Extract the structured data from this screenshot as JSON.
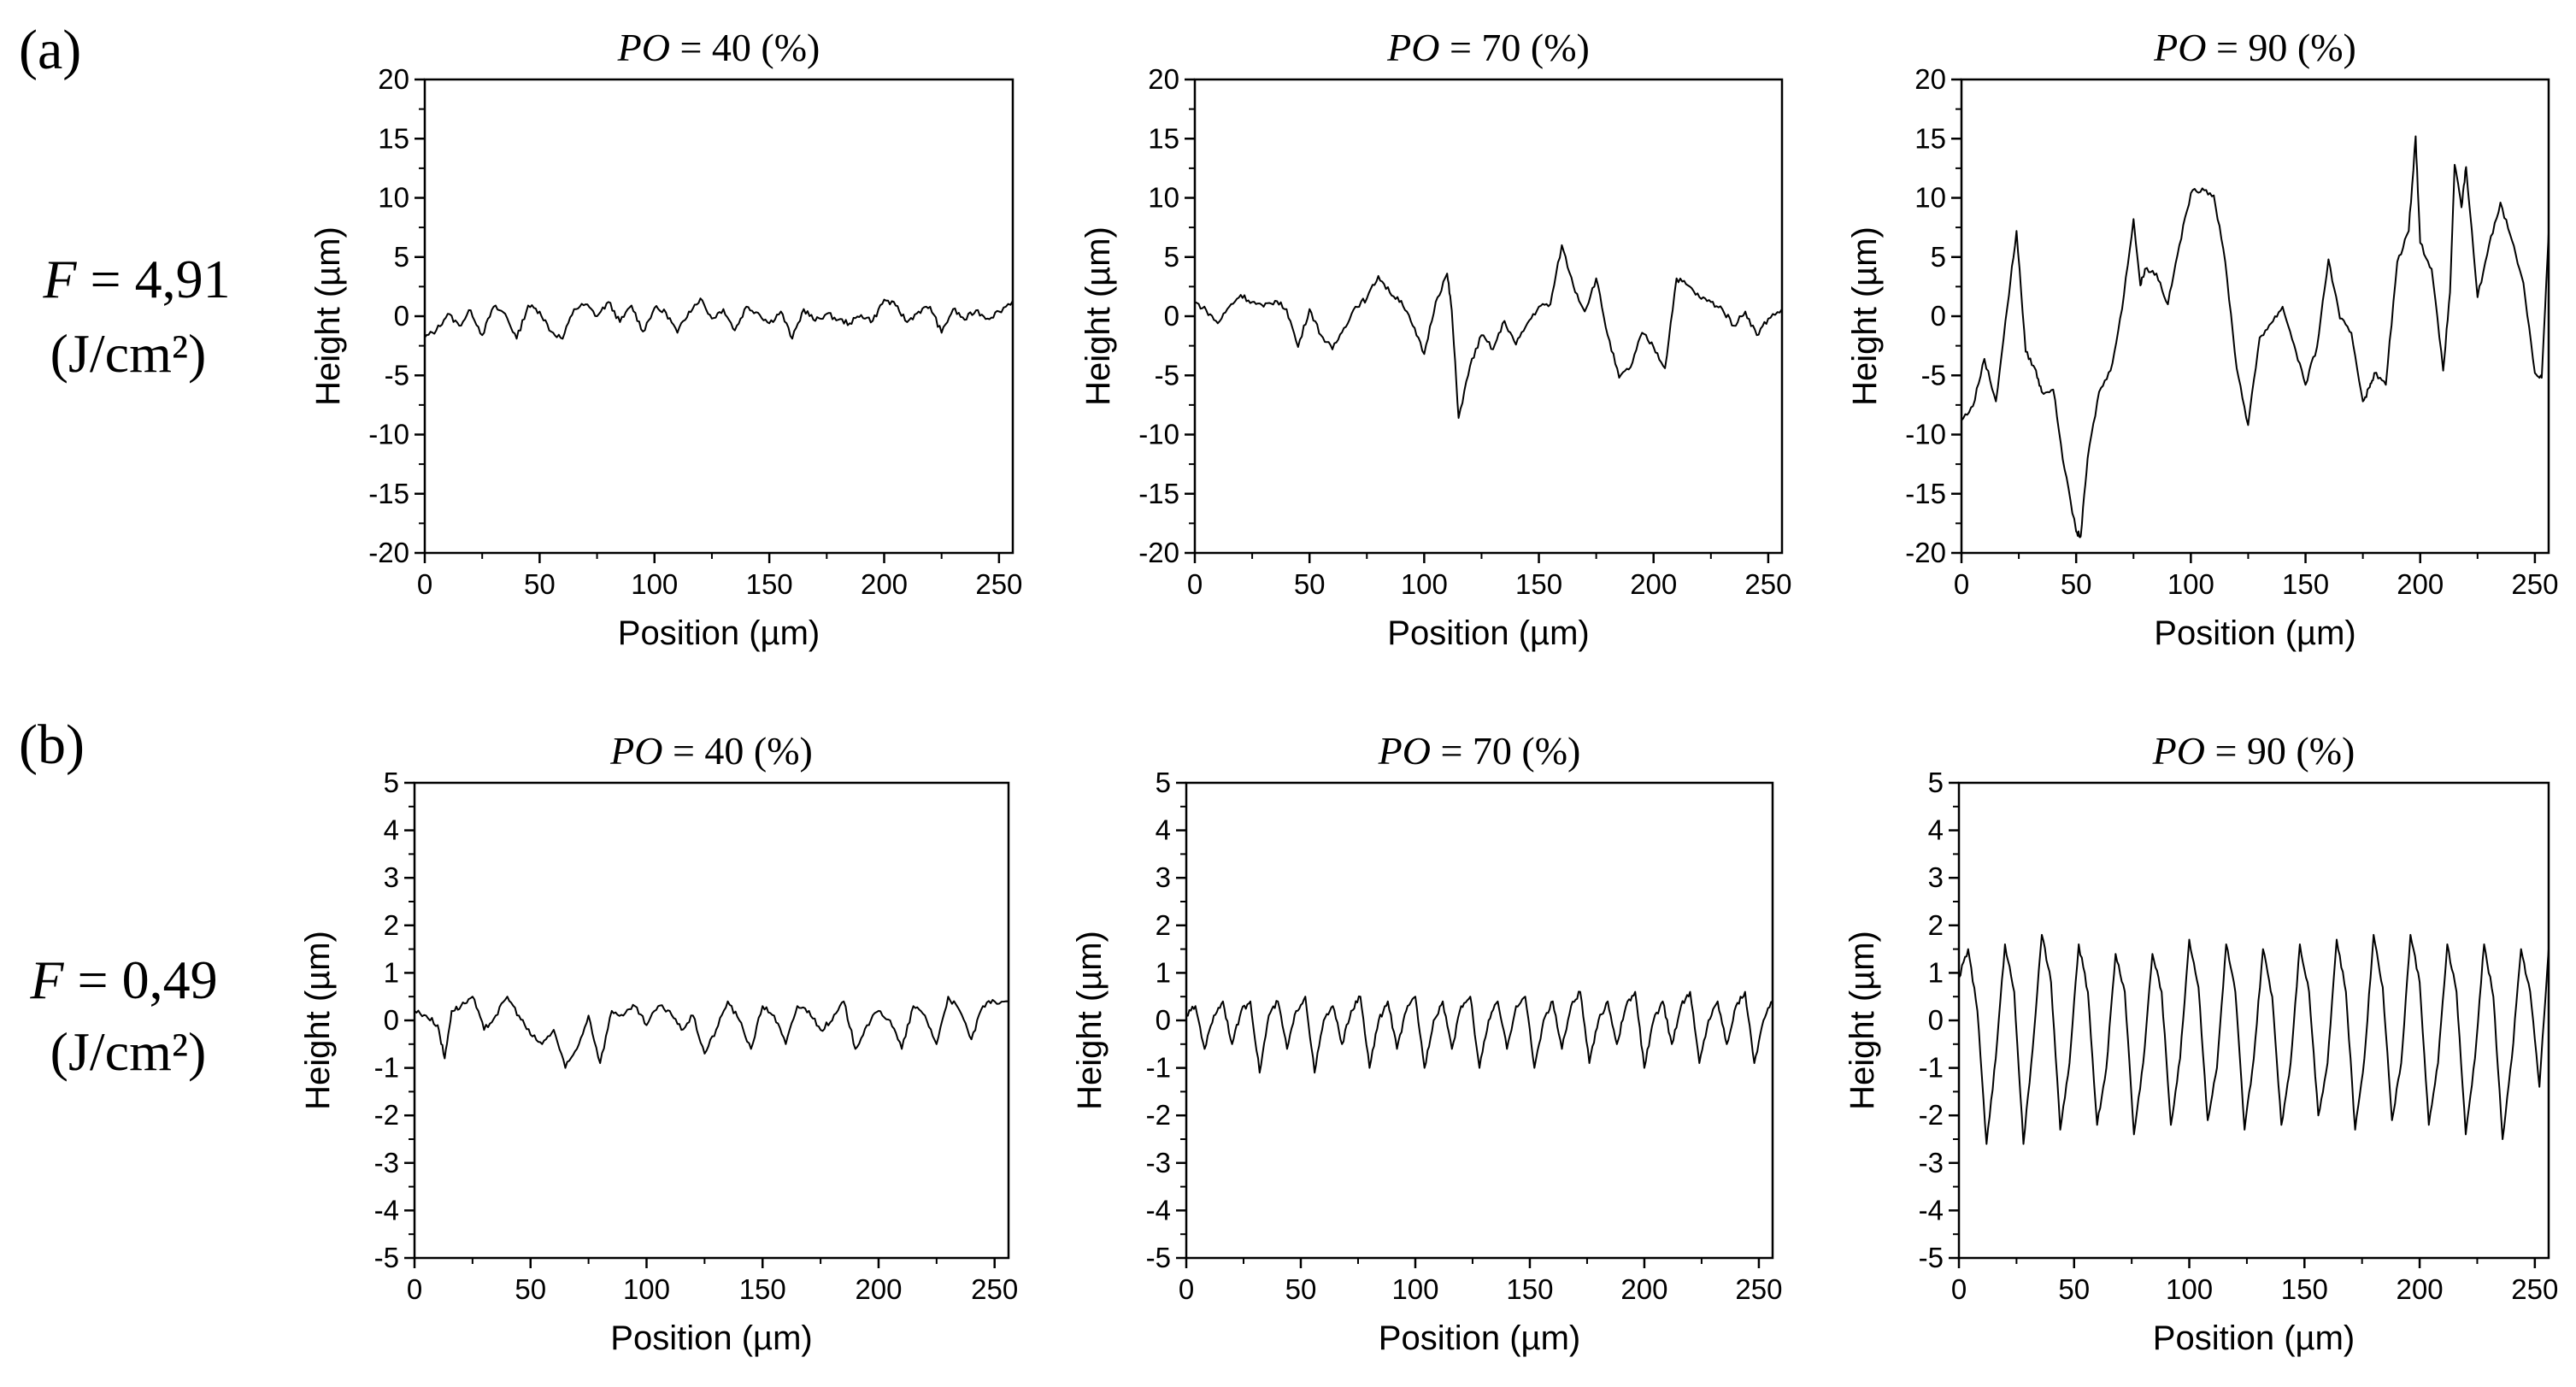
{
  "figure": {
    "label_a": "(a)",
    "label_b": "(b)",
    "row_a_fluence": {
      "symbol": "F",
      "value": "= 4,91",
      "unit": "(J/cm²)"
    },
    "row_b_fluence": {
      "symbol": "F",
      "value": "= 0,49",
      "unit": "(J/cm²)"
    }
  },
  "chart_data": [
    {
      "id": "a40",
      "type": "line",
      "row": "a",
      "title_symbol": "PO",
      "title_value": "= 40 (%)",
      "xlabel": "Position (µm)",
      "ylabel": "Height (µm)",
      "xlim": [
        0,
        256
      ],
      "ylim": [
        -20,
        20
      ],
      "xticks": [
        0,
        50,
        100,
        150,
        200,
        250
      ],
      "yticks": [
        -20,
        -15,
        -10,
        -5,
        0,
        5,
        10,
        15,
        20
      ],
      "series": [
        {
          "name": "profile",
          "x": [
            0,
            5,
            10,
            15,
            20,
            25,
            30,
            35,
            40,
            45,
            50,
            55,
            60,
            65,
            70,
            75,
            80,
            85,
            90,
            95,
            100,
            105,
            110,
            115,
            120,
            125,
            130,
            135,
            140,
            145,
            150,
            155,
            160,
            165,
            170,
            175,
            180,
            185,
            190,
            195,
            200,
            205,
            210,
            215,
            220,
            225,
            230,
            235,
            240,
            245,
            250,
            256
          ],
          "y": [
            -1.8,
            -1.2,
            0.2,
            -0.8,
            0.5,
            -1.6,
            0.8,
            0.2,
            -1.9,
            0.9,
            0.4,
            -1.3,
            -1.9,
            0.6,
            1.0,
            0.0,
            1.2,
            -0.5,
            0.9,
            -1.3,
            0.7,
            0.3,
            -1.4,
            0.4,
            1.5,
            -0.2,
            0.6,
            -1.2,
            0.8,
            0.3,
            -0.6,
            0.4,
            -1.9,
            0.6,
            -0.4,
            0.2,
            -0.3,
            -0.6,
            0.1,
            -0.4,
            1.4,
            0.9,
            -0.5,
            0.4,
            0.8,
            -1.4,
            0.6,
            -0.3,
            0.5,
            -0.2,
            0.4,
            1.3
          ]
        }
      ]
    },
    {
      "id": "a70",
      "type": "line",
      "row": "a",
      "title_symbol": "PO",
      "title_value": "= 70 (%)",
      "xlabel": "Position (µm)",
      "ylabel": "Height (µm)",
      "xlim": [
        0,
        256
      ],
      "ylim": [
        -20,
        20
      ],
      "xticks": [
        0,
        50,
        100,
        150,
        200,
        250
      ],
      "yticks": [
        -20,
        -15,
        -10,
        -5,
        0,
        5,
        10,
        15,
        20
      ],
      "series": [
        {
          "name": "profile",
          "x": [
            0,
            5,
            10,
            15,
            20,
            25,
            30,
            35,
            40,
            45,
            50,
            55,
            60,
            65,
            70,
            75,
            80,
            85,
            90,
            95,
            100,
            105,
            110,
            112,
            115,
            120,
            125,
            130,
            135,
            140,
            145,
            150,
            155,
            160,
            165,
            170,
            175,
            180,
            185,
            190,
            195,
            200,
            205,
            210,
            215,
            220,
            225,
            230,
            235,
            240,
            245,
            250,
            256
          ],
          "y": [
            1.2,
            0.5,
            -0.6,
            0.8,
            1.8,
            1.2,
            0.8,
            1.3,
            0.6,
            -2.6,
            0.6,
            -1.6,
            -2.8,
            -1.0,
            0.8,
            1.5,
            3.4,
            2.0,
            1.3,
            -0.8,
            -3.2,
            1.2,
            3.6,
            0.5,
            -8.6,
            -4.2,
            -1.6,
            -2.8,
            -0.4,
            -2.4,
            -0.6,
            0.8,
            1.0,
            6.0,
            2.6,
            0.4,
            3.2,
            -1.6,
            -5.2,
            -4.3,
            -1.4,
            -2.6,
            -4.4,
            3.2,
            2.6,
            1.6,
            1.2,
            0.6,
            -0.8,
            0.4,
            -1.6,
            -0.2,
            0.6
          ]
        }
      ]
    },
    {
      "id": "a90",
      "type": "line",
      "row": "a",
      "title_symbol": "PO",
      "title_value": "= 90 (%)",
      "xlabel": "Position (µm)",
      "ylabel": "Height (µm)",
      "xlim": [
        0,
        256
      ],
      "ylim": [
        -20,
        20
      ],
      "xticks": [
        0,
        50,
        100,
        150,
        200,
        250
      ],
      "yticks": [
        -20,
        -15,
        -10,
        -5,
        0,
        5,
        10,
        15,
        20
      ],
      "series": [
        {
          "name": "profile",
          "x": [
            0,
            5,
            10,
            15,
            20,
            24,
            28,
            32,
            35,
            40,
            45,
            50,
            52,
            55,
            60,
            65,
            70,
            75,
            78,
            80,
            85,
            90,
            95,
            100,
            105,
            110,
            115,
            120,
            125,
            130,
            135,
            140,
            145,
            150,
            155,
            160,
            165,
            170,
            175,
            178,
            180,
            185,
            190,
            195,
            198,
            200,
            205,
            210,
            213,
            215,
            218,
            220,
            225,
            230,
            235,
            240,
            245,
            250,
            253,
            256
          ],
          "y": [
            -8.8,
            -7.6,
            -3.6,
            -7.2,
            0.8,
            7.2,
            -3.0,
            -4.4,
            -6.4,
            -6.2,
            -13.0,
            -18.2,
            -18.6,
            -12.0,
            -6.4,
            -4.6,
            0.6,
            8.2,
            2.6,
            4.0,
            3.6,
            1.0,
            6.0,
            10.4,
            10.8,
            10.2,
            4.6,
            -4.4,
            -9.2,
            -1.8,
            -0.6,
            0.8,
            -2.4,
            -5.8,
            -2.6,
            4.8,
            -0.2,
            -1.4,
            -7.2,
            -6.0,
            -4.8,
            -5.8,
            4.6,
            7.2,
            15.2,
            6.2,
            4.0,
            -4.6,
            2.0,
            12.8,
            9.2,
            12.6,
            1.6,
            6.0,
            9.6,
            6.4,
            2.8,
            -4.8,
            -5.2,
            7.0
          ]
        }
      ]
    },
    {
      "id": "b40",
      "type": "line",
      "row": "b",
      "title_symbol": "PO",
      "title_value": "= 40 (%)",
      "xlabel": "Position (µm)",
      "ylabel": "Height (µm)",
      "xlim": [
        0,
        256
      ],
      "ylim": [
        -5,
        5
      ],
      "xticks": [
        0,
        50,
        100,
        150,
        200,
        250
      ],
      "yticks": [
        -5,
        -4,
        -3,
        -2,
        -1,
        0,
        1,
        2,
        3,
        4,
        5
      ],
      "series": [
        {
          "name": "profile",
          "x": [
            0,
            5,
            10,
            13,
            16,
            20,
            25,
            30,
            35,
            40,
            45,
            50,
            55,
            60,
            65,
            70,
            75,
            80,
            85,
            90,
            95,
            100,
            105,
            110,
            115,
            120,
            125,
            130,
            135,
            140,
            145,
            150,
            155,
            160,
            165,
            170,
            175,
            180,
            185,
            190,
            195,
            200,
            205,
            210,
            215,
            220,
            225,
            230,
            235,
            240,
            245,
            250,
            256
          ],
          "y": [
            0.2,
            0.1,
            -0.1,
            -0.8,
            0.2,
            0.3,
            0.5,
            -0.2,
            0.1,
            0.5,
            0.1,
            -0.3,
            -0.5,
            -0.2,
            -1.0,
            -0.6,
            0.1,
            -0.9,
            0.2,
            0.1,
            0.3,
            -0.1,
            0.3,
            0.2,
            -0.2,
            0.1,
            -0.7,
            -0.2,
            0.4,
            0.0,
            -0.6,
            0.3,
            0.1,
            -0.5,
            0.3,
            0.2,
            -0.2,
            0.0,
            0.4,
            -0.6,
            -0.1,
            0.2,
            0.0,
            -0.6,
            0.3,
            0.1,
            -0.5,
            0.5,
            0.2,
            -0.4,
            0.3,
            0.4,
            0.4
          ]
        }
      ]
    },
    {
      "id": "b70",
      "type": "line",
      "row": "b",
      "title_symbol": "PO",
      "title_value": "= 70 (%)",
      "xlabel": "Position (µm)",
      "ylabel": "Height (µm)",
      "xlim": [
        0,
        256
      ],
      "ylim": [
        -5,
        5
      ],
      "xticks": [
        0,
        50,
        100,
        150,
        200,
        250
      ],
      "yticks": [
        -5,
        -4,
        -3,
        -2,
        -1,
        0,
        1,
        2,
        3,
        4,
        5
      ],
      "series": [
        {
          "name": "profile",
          "x": [
            0,
            4,
            8,
            12,
            16,
            20,
            24,
            28,
            32,
            36,
            40,
            44,
            48,
            52,
            56,
            60,
            64,
            68,
            72,
            76,
            80,
            84,
            88,
            92,
            96,
            100,
            104,
            108,
            112,
            116,
            120,
            124,
            128,
            132,
            136,
            140,
            144,
            148,
            152,
            156,
            160,
            164,
            168,
            172,
            176,
            180,
            184,
            188,
            192,
            196,
            200,
            204,
            208,
            212,
            216,
            220,
            224,
            228,
            232,
            236,
            240,
            244,
            248,
            252,
            256
          ],
          "y": [
            0.1,
            0.3,
            -0.6,
            0.1,
            0.4,
            -0.5,
            0.2,
            0.4,
            -1.1,
            0.1,
            0.4,
            -0.6,
            0.2,
            0.5,
            -1.1,
            0.0,
            0.3,
            -0.5,
            0.2,
            0.5,
            -1.0,
            0.0,
            0.4,
            -0.6,
            0.2,
            0.5,
            -1.0,
            0.0,
            0.4,
            -0.6,
            0.3,
            0.5,
            -1.0,
            0.0,
            0.4,
            -0.6,
            0.3,
            0.5,
            -1.0,
            0.0,
            0.4,
            -0.6,
            0.3,
            0.6,
            -0.9,
            0.0,
            0.4,
            -0.5,
            0.3,
            0.6,
            -1.0,
            0.0,
            0.4,
            -0.5,
            0.3,
            0.6,
            -0.9,
            0.0,
            0.4,
            -0.5,
            0.3,
            0.6,
            -0.9,
            0.0,
            0.4
          ]
        }
      ]
    },
    {
      "id": "b90",
      "type": "line",
      "row": "b",
      "title_symbol": "PO",
      "title_value": "= 90 (%)",
      "xlabel": "Position (µm)",
      "ylabel": "Height (µm)",
      "xlim": [
        0,
        256
      ],
      "ylim": [
        -5,
        5
      ],
      "xticks": [
        0,
        50,
        100,
        150,
        200,
        250
      ],
      "yticks": [
        -5,
        -4,
        -3,
        -2,
        -1,
        0,
        1,
        2,
        3,
        4,
        5
      ],
      "series": [
        {
          "name": "profile",
          "x": [
            0,
            4,
            8,
            12,
            16,
            20,
            24,
            28,
            32,
            36,
            40,
            44,
            48,
            52,
            56,
            60,
            64,
            68,
            72,
            76,
            80,
            84,
            88,
            92,
            96,
            100,
            104,
            108,
            112,
            116,
            120,
            124,
            128,
            132,
            136,
            140,
            144,
            148,
            152,
            156,
            160,
            164,
            168,
            172,
            176,
            180,
            184,
            188,
            192,
            196,
            200,
            204,
            208,
            212,
            216,
            220,
            224,
            228,
            232,
            236,
            240,
            244,
            248,
            252,
            256
          ],
          "y": [
            0.9,
            1.5,
            0.2,
            -2.6,
            -0.8,
            1.6,
            0.6,
            -2.6,
            -0.6,
            1.8,
            0.8,
            -2.3,
            -0.9,
            1.6,
            0.6,
            -2.2,
            -1.0,
            1.4,
            0.6,
            -2.4,
            -0.9,
            1.4,
            0.6,
            -2.2,
            -0.8,
            1.7,
            0.7,
            -2.1,
            -1.0,
            1.6,
            0.6,
            -2.3,
            -0.8,
            1.5,
            0.5,
            -2.2,
            -0.9,
            1.6,
            0.6,
            -2.0,
            -0.9,
            1.7,
            0.6,
            -2.3,
            -0.8,
            1.8,
            0.7,
            -2.1,
            -0.9,
            1.8,
            0.8,
            -2.2,
            -0.9,
            1.6,
            0.6,
            -2.4,
            -0.8,
            1.6,
            0.5,
            -2.5,
            -0.8,
            1.5,
            0.6,
            -1.4,
            1.5
          ]
        }
      ]
    }
  ]
}
